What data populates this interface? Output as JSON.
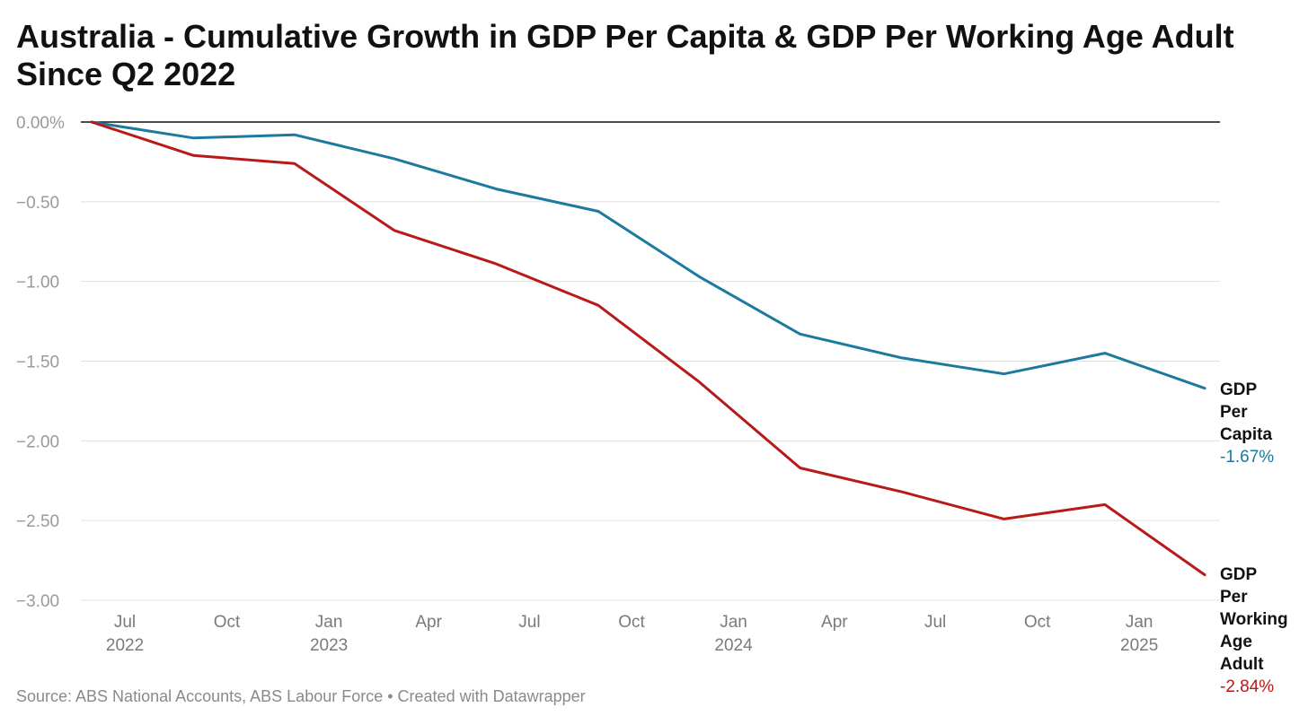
{
  "title": "Australia - Cumulative Growth in GDP Per Capita & GDP Per Working Age Adult Since Q2 2022",
  "source": "Source: ABS National Accounts, ABS Labour Force • Created with Datawrapper",
  "colors": {
    "per_capita": "#1b7a9e",
    "per_working_age_adult": "#b81a1a",
    "zero_line": "#111111",
    "grid": "#e0e0e0"
  },
  "chart_data": {
    "type": "line",
    "title": "Australia - Cumulative Growth in GDP Per Capita & GDP Per Working Age Adult Since Q2 2022",
    "ylim": [
      -3.0,
      0.0
    ],
    "y_ticks": [
      "0.00%",
      "−0.50",
      "−1.00",
      "−1.50",
      "−2.00",
      "−2.50",
      "−3.00"
    ],
    "y_tick_values": [
      0.0,
      -0.5,
      -1.0,
      -1.5,
      -2.0,
      -2.5,
      -3.0
    ],
    "grid": true,
    "x": [
      "2022-06",
      "2022-09",
      "2022-12",
      "2023-03",
      "2023-06",
      "2023-09",
      "2023-12",
      "2024-03",
      "2024-06",
      "2024-09",
      "2024-12",
      "2025-03"
    ],
    "x_ticks": [
      {
        "month": "Jul",
        "year": "2022",
        "date": "2022-07"
      },
      {
        "month": "Oct",
        "year": "",
        "date": "2022-10"
      },
      {
        "month": "Jan",
        "year": "2023",
        "date": "2023-01"
      },
      {
        "month": "Apr",
        "year": "",
        "date": "2023-04"
      },
      {
        "month": "Jul",
        "year": "",
        "date": "2023-07"
      },
      {
        "month": "Oct",
        "year": "",
        "date": "2023-10"
      },
      {
        "month": "Jan",
        "year": "2024",
        "date": "2024-01"
      },
      {
        "month": "Apr",
        "year": "",
        "date": "2024-04"
      },
      {
        "month": "Jul",
        "year": "",
        "date": "2024-07"
      },
      {
        "month": "Oct",
        "year": "",
        "date": "2024-10"
      },
      {
        "month": "Jan",
        "year": "2025",
        "date": "2025-01"
      }
    ],
    "series": [
      {
        "name": "GDP Per Capita",
        "label_lines": [
          "GDP",
          "Per",
          "Capita"
        ],
        "end_label": "-1.67%",
        "color": "#1b7a9e",
        "values": [
          0.0,
          -0.1,
          -0.08,
          -0.23,
          -0.42,
          -0.56,
          -0.97,
          -1.33,
          -1.48,
          -1.58,
          -1.45,
          -1.67
        ]
      },
      {
        "name": "GDP Per Working Age Adult",
        "label_lines": [
          "GDP",
          "Per",
          "Working",
          "Age",
          "Adult"
        ],
        "end_label": "-2.84%",
        "color": "#b81a1a",
        "values": [
          0.0,
          -0.21,
          -0.26,
          -0.68,
          -0.89,
          -1.15,
          -1.63,
          -2.17,
          -2.32,
          -2.49,
          -2.4,
          -2.84
        ]
      }
    ]
  }
}
